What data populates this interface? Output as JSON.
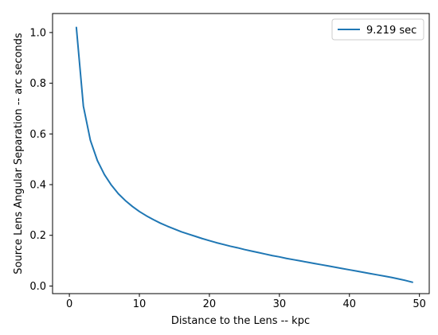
{
  "chart_data": {
    "type": "line",
    "title": "",
    "xlabel": "Distance to the Lens -- kpc",
    "ylabel": "Source Lens Angular Separation -- arc seconds",
    "xlim": [
      -2.4,
      51.4
    ],
    "ylim": [
      -0.03,
      1.075
    ],
    "xticks": [
      0,
      10,
      20,
      30,
      40,
      50
    ],
    "yticks": [
      0.0,
      0.2,
      0.4,
      0.6,
      0.8,
      1.0
    ],
    "xtick_labels": [
      "0",
      "10",
      "20",
      "30",
      "40",
      "50"
    ],
    "ytick_labels": [
      "0.0",
      "0.2",
      "0.4",
      "0.6",
      "0.8",
      "1.0"
    ],
    "grid": false,
    "legend_position": "top-right",
    "series": [
      {
        "name": "9.219 sec",
        "color": "#1f77b4",
        "x": [
          1,
          2,
          3,
          4,
          5,
          6,
          7,
          8,
          9,
          10,
          11,
          12,
          13,
          14,
          15,
          16,
          17,
          18,
          19,
          20,
          21,
          22,
          23,
          24,
          25,
          26,
          27,
          28,
          29,
          30,
          31,
          32,
          33,
          34,
          35,
          36,
          37,
          38,
          39,
          40,
          41,
          42,
          43,
          44,
          45,
          46,
          47,
          48,
          49
        ],
        "y": [
          1.02,
          0.71,
          0.575,
          0.495,
          0.44,
          0.398,
          0.364,
          0.337,
          0.314,
          0.294,
          0.277,
          0.262,
          0.248,
          0.236,
          0.225,
          0.214,
          0.205,
          0.196,
          0.187,
          0.179,
          0.171,
          0.164,
          0.157,
          0.151,
          0.144,
          0.138,
          0.132,
          0.126,
          0.12,
          0.115,
          0.109,
          0.104,
          0.099,
          0.094,
          0.089,
          0.084,
          0.079,
          0.074,
          0.069,
          0.064,
          0.059,
          0.054,
          0.049,
          0.044,
          0.039,
          0.034,
          0.028,
          0.022,
          0.015
        ]
      }
    ]
  }
}
